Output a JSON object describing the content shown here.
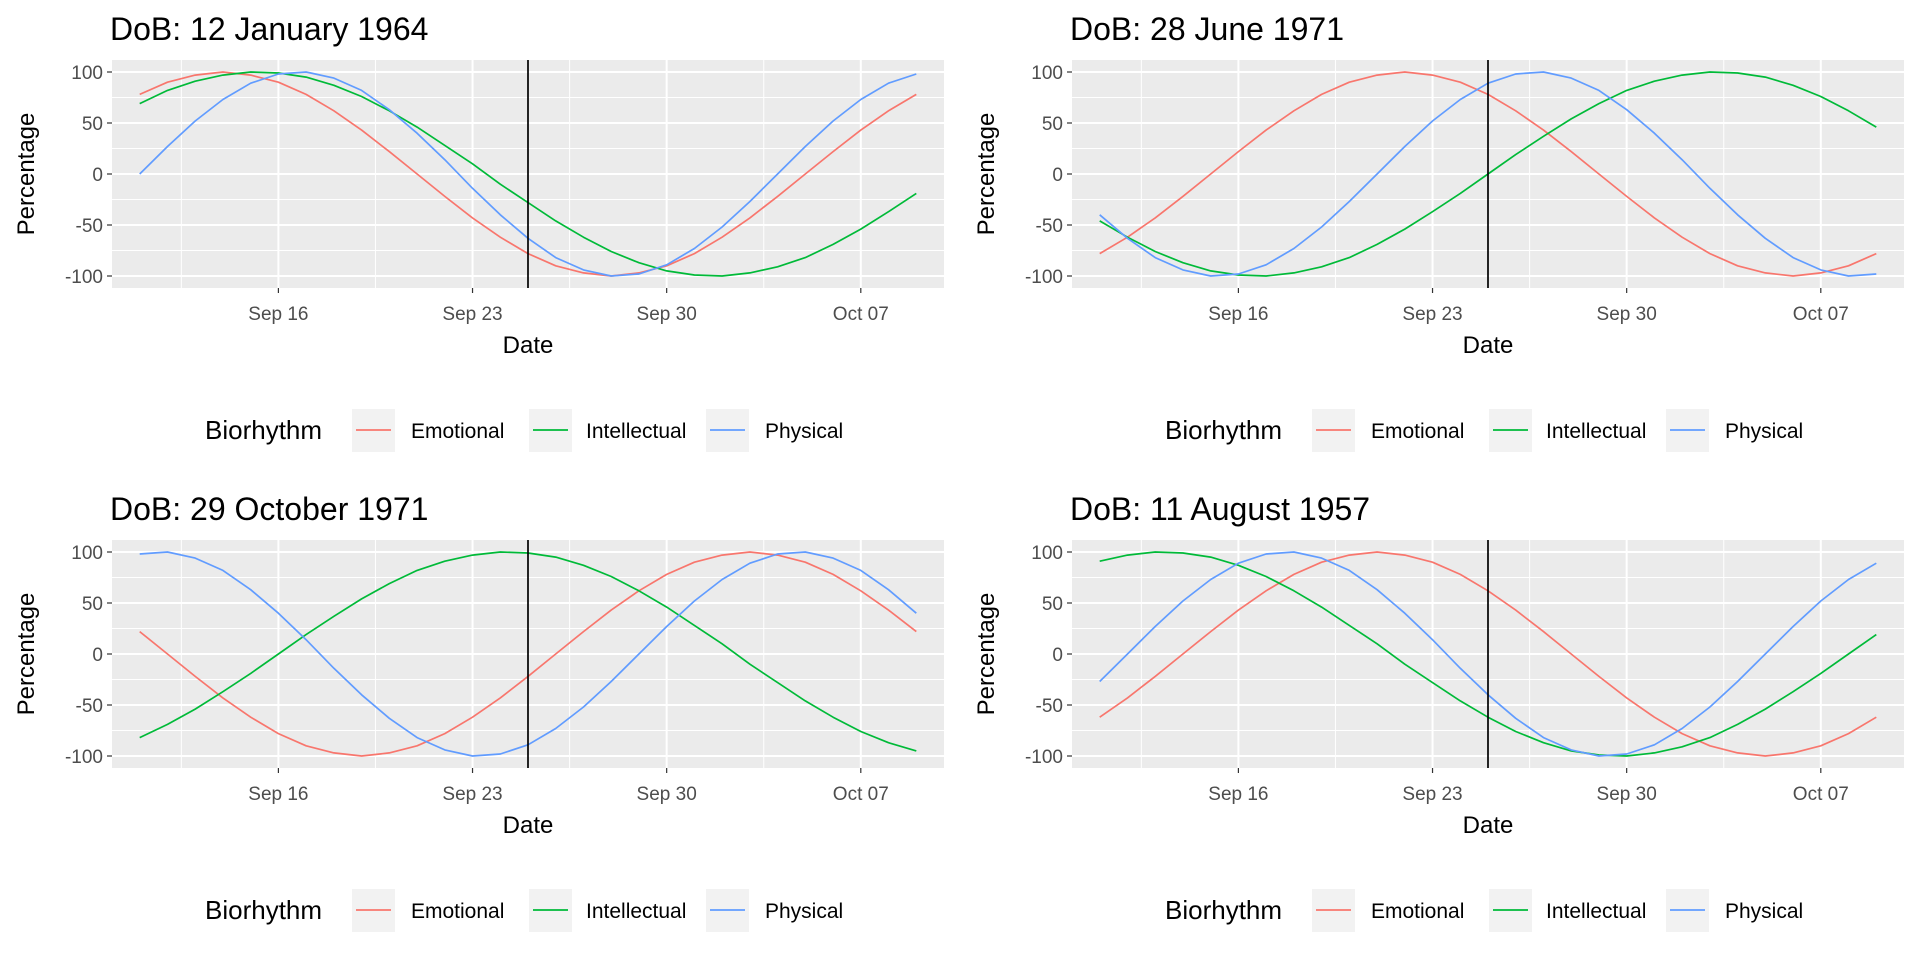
{
  "chart_data": {
    "type": "line",
    "legend": {
      "title": "Biorhythm",
      "position": "bottom",
      "entries": [
        {
          "name": "Emotional",
          "color": "#F8766D"
        },
        {
          "name": "Intellectual",
          "color": "#00BA38"
        },
        {
          "name": "Physical",
          "color": "#619CFF"
        }
      ]
    },
    "xlabel": "Date",
    "ylabel": "Percentage",
    "ylim": [
      -100,
      100
    ],
    "y_ticks": [
      100,
      50,
      0,
      -50,
      -100
    ],
    "x_ticks": [
      {
        "date": "2024-09-16",
        "label": "Sep 16"
      },
      {
        "date": "2024-09-23",
        "label": "Sep 23"
      },
      {
        "date": "2024-09-30",
        "label": "Sep 30"
      },
      {
        "date": "2024-10-07",
        "label": "Oct 07"
      }
    ],
    "x_dates": [
      "2024-09-11",
      "2024-09-12",
      "2024-09-13",
      "2024-09-14",
      "2024-09-15",
      "2024-09-16",
      "2024-09-17",
      "2024-09-18",
      "2024-09-19",
      "2024-09-20",
      "2024-09-21",
      "2024-09-22",
      "2024-09-23",
      "2024-09-24",
      "2024-09-25",
      "2024-09-26",
      "2024-09-27",
      "2024-09-28",
      "2024-09-29",
      "2024-09-30",
      "2024-10-01",
      "2024-10-02",
      "2024-10-03",
      "2024-10-04",
      "2024-10-05",
      "2024-10-06",
      "2024-10-07",
      "2024-10-08",
      "2024-10-09"
    ],
    "x_range": [
      "2024-09-10",
      "2024-10-10"
    ],
    "reference_line_date": "2024-09-25",
    "grid": true,
    "panels": [
      {
        "title": "DoB: 12 January 1964",
        "series": [
          {
            "name": "Emotional",
            "values": [
              78,
              90,
              97,
              100,
              97,
              90,
              78,
              62,
              43,
              22,
              0,
              -22,
              -43,
              -62,
              -78,
              -90,
              -97,
              -100,
              -97,
              -90,
              -78,
              -62,
              -43,
              -22,
              0,
              22,
              43,
              62,
              78
            ]
          },
          {
            "name": "Intellectual",
            "values": [
              69,
              82,
              91,
              97,
              100,
              99,
              95,
              87,
              76,
              62,
              46,
              28,
              10,
              -10,
              -28,
              -46,
              -62,
              -76,
              -87,
              -95,
              -99,
              -100,
              -97,
              -91,
              -82,
              -69,
              -54,
              -37,
              -19
            ]
          },
          {
            "name": "Physical",
            "values": [
              0,
              27,
              52,
              73,
              89,
              98,
              100,
              94,
              82,
              63,
              40,
              14,
              -14,
              -40,
              -63,
              -82,
              -94,
              -100,
              -98,
              -89,
              -73,
              -52,
              -27,
              0,
              27,
              52,
              73,
              89,
              98
            ]
          }
        ]
      },
      {
        "title": "DoB: 28 June 1971",
        "series": [
          {
            "name": "Emotional",
            "values": [
              -78,
              -62,
              -43,
              -22,
              0,
              22,
              43,
              62,
              78,
              90,
              97,
              100,
              97,
              90,
              78,
              62,
              43,
              22,
              0,
              -22,
              -43,
              -62,
              -78,
              -90,
              -97,
              -100,
              -97,
              -90,
              -78
            ]
          },
          {
            "name": "Intellectual",
            "values": [
              -46,
              -62,
              -76,
              -87,
              -95,
              -99,
              -100,
              -97,
              -91,
              -82,
              -69,
              -54,
              -37,
              -19,
              0,
              19,
              37,
              54,
              69,
              82,
              91,
              97,
              100,
              99,
              95,
              87,
              76,
              62,
              46
            ]
          },
          {
            "name": "Physical",
            "values": [
              -40,
              -63,
              -82,
              -94,
              -100,
              -98,
              -89,
              -73,
              -52,
              -27,
              0,
              27,
              52,
              73,
              89,
              98,
              100,
              94,
              82,
              63,
              40,
              14,
              -14,
              -40,
              -63,
              -82,
              -94,
              -100,
              -98
            ]
          }
        ]
      },
      {
        "title": "DoB: 29 October 1971",
        "series": [
          {
            "name": "Emotional",
            "values": [
              22,
              0,
              -22,
              -43,
              -62,
              -78,
              -90,
              -97,
              -100,
              -97,
              -90,
              -78,
              -62,
              -43,
              -22,
              0,
              22,
              43,
              62,
              78,
              90,
              97,
              100,
              97,
              90,
              78,
              62,
              43,
              22
            ]
          },
          {
            "name": "Intellectual",
            "values": [
              -82,
              -69,
              -54,
              -37,
              -19,
              0,
              19,
              37,
              54,
              69,
              82,
              91,
              97,
              100,
              99,
              95,
              87,
              76,
              62,
              46,
              28,
              10,
              -10,
              -28,
              -46,
              -62,
              -76,
              -87,
              -95
            ]
          },
          {
            "name": "Physical",
            "values": [
              98,
              100,
              94,
              82,
              63,
              40,
              14,
              -14,
              -40,
              -63,
              -82,
              -94,
              -100,
              -98,
              -89,
              -73,
              -52,
              -27,
              0,
              27,
              52,
              73,
              89,
              98,
              100,
              94,
              82,
              63,
              40
            ]
          }
        ]
      },
      {
        "title": "DoB: 11 August 1957",
        "series": [
          {
            "name": "Emotional",
            "values": [
              -62,
              -43,
              -22,
              0,
              22,
              43,
              62,
              78,
              90,
              97,
              100,
              97,
              90,
              78,
              62,
              43,
              22,
              0,
              -22,
              -43,
              -62,
              -78,
              -90,
              -97,
              -100,
              -97,
              -90,
              -78,
              -62
            ]
          },
          {
            "name": "Intellectual",
            "values": [
              91,
              97,
              100,
              99,
              95,
              87,
              76,
              62,
              46,
              28,
              10,
              -10,
              -28,
              -46,
              -62,
              -76,
              -87,
              -95,
              -99,
              -100,
              -97,
              -91,
              -82,
              -69,
              -54,
              -37,
              -19,
              0,
              19
            ]
          },
          {
            "name": "Physical",
            "values": [
              -27,
              0,
              27,
              52,
              73,
              89,
              98,
              100,
              94,
              82,
              63,
              40,
              14,
              -14,
              -40,
              -63,
              -82,
              -94,
              -100,
              -98,
              -89,
              -73,
              -52,
              -27,
              0,
              27,
              52,
              73,
              89
            ]
          }
        ]
      }
    ]
  }
}
